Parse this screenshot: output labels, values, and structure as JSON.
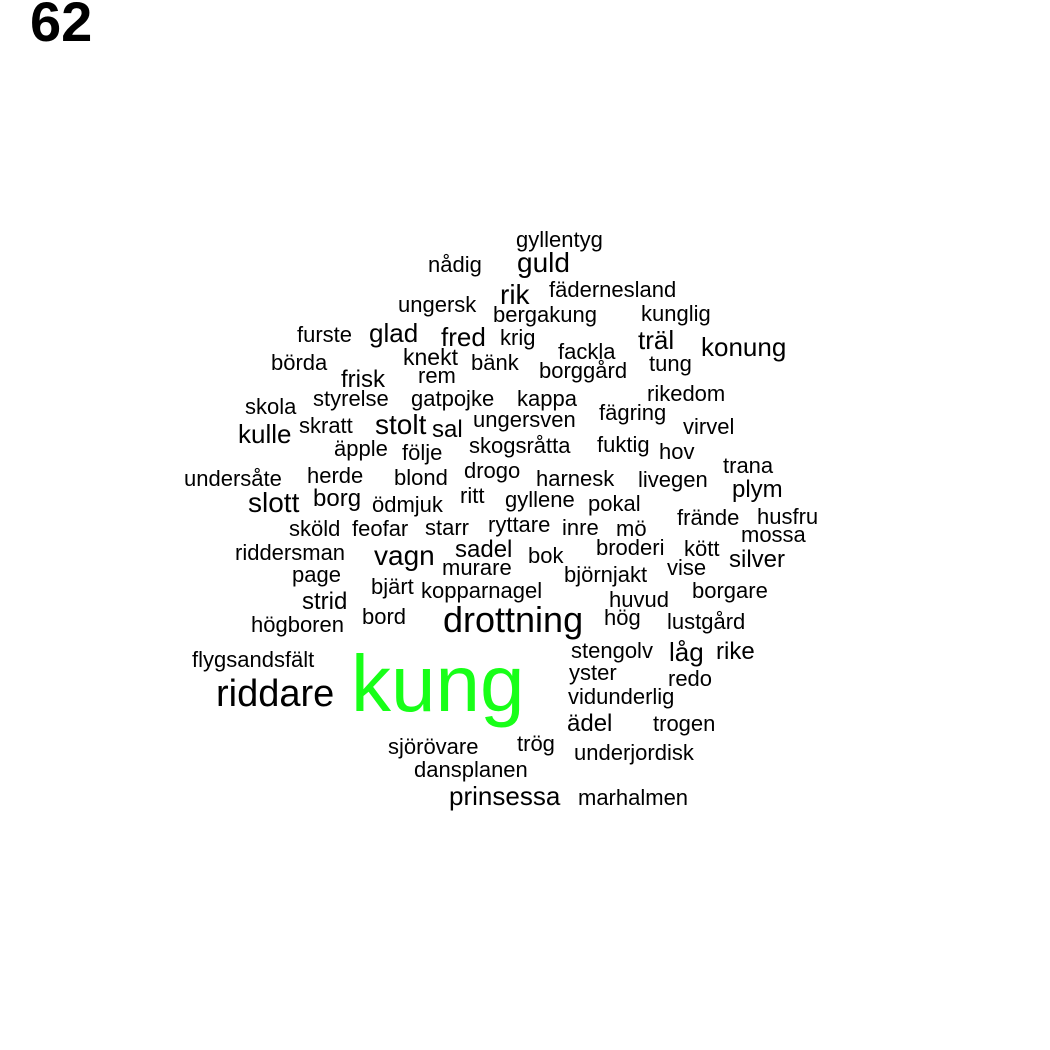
{
  "page_number": "62",
  "highlight_color": "#18ff18",
  "text_color": "#000000",
  "highlighted_word": "kung",
  "words": [
    "gyllentyg",
    "nådig",
    "guld",
    "fädernesland",
    "rik",
    "ungersk",
    "bergakung",
    "kunglig",
    "furste",
    "glad",
    "fred",
    "krig",
    "träl",
    "fackla",
    "konung",
    "börda",
    "knekt",
    "bänk",
    "tung",
    "rem",
    "borggård",
    "frisk",
    "skola",
    "styrelse",
    "gatpojke",
    "kappa",
    "rikedom",
    "fägring",
    "kulle",
    "skratt",
    "stolt",
    "sal",
    "ungersven",
    "virvel",
    "äpple",
    "följe",
    "skogsråtta",
    "fuktig",
    "hov",
    "undersåte",
    "herde",
    "blond",
    "drogo",
    "harnesk",
    "livegen",
    "trana",
    "plym",
    "slott",
    "borg",
    "ödmjuk",
    "ritt",
    "gyllene",
    "pokal",
    "frände",
    "husfru",
    "sköld",
    "feofar",
    "starr",
    "ryttare",
    "inre",
    "mö",
    "mossa",
    "riddersman",
    "vagn",
    "sadel",
    "bok",
    "broderi",
    "kött",
    "silver",
    "page",
    "murare",
    "björnjakt",
    "vise",
    "bjärt",
    "kopparnagel",
    "borgare",
    "strid",
    "huvud",
    "bord",
    "drottning",
    "hög",
    "lustgård",
    "högboren",
    "stengolv",
    "låg",
    "rike",
    "flygsandsfält",
    "kung",
    "yster",
    "redo",
    "riddare",
    "vidunderlig",
    "ädel",
    "trogen",
    "sjörövare",
    "trög",
    "underjordisk",
    "dansplanen",
    "prinsessa",
    "marhalmen"
  ]
}
